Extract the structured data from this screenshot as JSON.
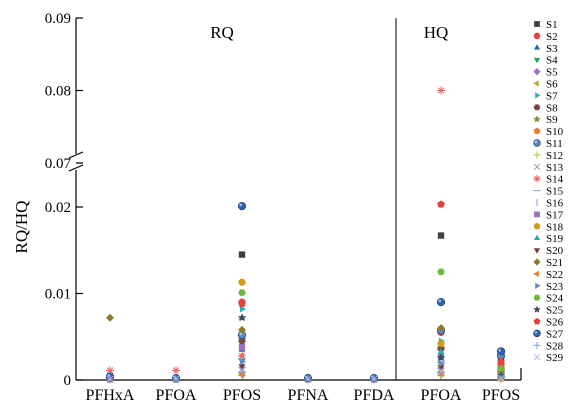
{
  "chart_data": {
    "type": "scatter",
    "ylabel": "RQ/HQ",
    "yaxis_break": [
      0.023,
      0.07
    ],
    "ylim": [
      0,
      0.09
    ],
    "yticks": [
      "0",
      "0.01",
      "0.02",
      "0.07",
      "0.08",
      "0.09"
    ],
    "legend_position": "right",
    "panels": [
      {
        "label": "RQ",
        "categories": [
          "PFHxA",
          "PFOA",
          "PFOS",
          "PFNA",
          "PFDA"
        ]
      },
      {
        "label": "HQ",
        "categories": [
          "PFOA",
          "PFOS"
        ]
      }
    ],
    "series": [
      {
        "name": "S1",
        "marker": "square",
        "color": "#404040",
        "rq": {
          "PFHxA": 0.0002,
          "PFOA": 0.0001,
          "PFOS": 0.0145,
          "PFNA": 0.0001,
          "PFDA": 0.0001
        },
        "hq": {
          "PFOA": 0.0167,
          "PFOS": 0.0022
        }
      },
      {
        "name": "S2",
        "marker": "circle",
        "color": "#e8403a",
        "rq": {
          "PFHxA": 0.0002,
          "PFOA": 0.0002,
          "PFOS": 0.009,
          "PFNA": 0.0001,
          "PFDA": 0.0001
        },
        "hq": {
          "PFOA": 0.0055,
          "PFOS": 0.0015
        }
      },
      {
        "name": "S3",
        "marker": "triangle-up",
        "color": "#2f62b4",
        "rq": {
          "PFHxA": 0.0001,
          "PFOA": 0.0001,
          "PFOS": 0.0035,
          "PFNA": 0.0001,
          "PFDA": 0.0001
        },
        "hq": {
          "PFOA": 0.0025,
          "PFOS": 0.0006
        }
      },
      {
        "name": "S4",
        "marker": "triangle-down",
        "color": "#27a35a",
        "rq": {
          "PFHxA": 0.0001,
          "PFOA": 0.0001,
          "PFOS": 0.0022,
          "PFNA": 0.0001,
          "PFDA": 0.0001
        },
        "hq": {
          "PFOA": 0.0018,
          "PFOS": 0.0004
        }
      },
      {
        "name": "S5",
        "marker": "diamond",
        "color": "#9e6fc1",
        "rq": {
          "PFHxA": 0.0001,
          "PFOA": 0.0001,
          "PFOS": 0.0048,
          "PFNA": 0.0001,
          "PFDA": 0.0001
        },
        "hq": {
          "PFOA": 0.0035,
          "PFOS": 0.0008
        }
      },
      {
        "name": "S6",
        "marker": "triangle-left",
        "color": "#b4a63a",
        "rq": {
          "PFHxA": 0.0001,
          "PFOA": 0.0001,
          "PFOS": 0.0028,
          "PFNA": 0.0001,
          "PFDA": 0.0001
        },
        "hq": {
          "PFOA": 0.006,
          "PFOS": 0.0005
        }
      },
      {
        "name": "S7",
        "marker": "triangle-right",
        "color": "#26b0c0",
        "rq": {
          "PFHxA": 0.0001,
          "PFOA": 0.0001,
          "PFOS": 0.0082,
          "PFNA": 0.0001,
          "PFDA": 0.0001
        },
        "hq": {
          "PFOA": 0.0045,
          "PFOS": 0.0009
        }
      },
      {
        "name": "S8",
        "marker": "hexagon",
        "color": "#7a4a3e",
        "rq": {
          "PFHxA": 0.0001,
          "PFOA": 0.0001,
          "PFOS": 0.0045,
          "PFNA": 0.0001,
          "PFDA": 0.0001
        },
        "hq": {
          "PFOA": 0.0037,
          "PFOS": 0.0012
        }
      },
      {
        "name": "S9",
        "marker": "star",
        "color": "#8a8a3a",
        "rq": {
          "PFHxA": 0.0001,
          "PFOA": 0.0001,
          "PFOS": 0.0013,
          "PFNA": 0.0001,
          "PFDA": 0.0001
        },
        "hq": {
          "PFOA": 0.0012,
          "PFOS": 0.0003
        }
      },
      {
        "name": "S10",
        "marker": "pentagon",
        "color": "#f07a2a",
        "rq": {
          "PFHxA": 0.0002,
          "PFOA": 0.0001,
          "PFOS": 0.0008,
          "PFNA": 0.0001,
          "PFDA": 0.0001
        },
        "hq": {
          "PFOA": 0.0008,
          "PFOS": 0.0002
        }
      },
      {
        "name": "S11",
        "marker": "sphere",
        "color": "#5a87c0",
        "rq": {
          "PFHxA": 0.0003,
          "PFOA": 0.0002,
          "PFOS": 0.0052,
          "PFNA": 0.0002,
          "PFDA": 0.0002
        },
        "hq": {
          "PFOA": 0.0057,
          "PFOS": 0.0028
        }
      },
      {
        "name": "S12",
        "marker": "plus",
        "color": "#b6c43a",
        "rq": {
          "PFHxA": 0.0001,
          "PFOA": 0.0001,
          "PFOS": 0.0005,
          "PFNA": 0.0001,
          "PFDA": 0.0001
        },
        "hq": {
          "PFOA": 0.0005,
          "PFOS": 0.0001
        }
      },
      {
        "name": "S13",
        "marker": "x",
        "color": "#9a9a9a",
        "rq": {
          "PFHxA": 0.0002,
          "PFOA": 0.0001,
          "PFOS": 0.0012,
          "PFNA": 0.0001,
          "PFDA": 0.0001
        },
        "hq": {
          "PFOA": 0.0011,
          "PFOS": 0.0003
        }
      },
      {
        "name": "S14",
        "marker": "asterisk",
        "color": "#f06060",
        "rq": {
          "PFHxA": 0.0011,
          "PFOA": 0.0011,
          "PFOS": 0.0028,
          "PFNA": 0.0001,
          "PFDA": 0.0001
        },
        "hq": {
          "PFOA": 0.08,
          "PFOS": 0.0018
        }
      },
      {
        "name": "S15",
        "marker": "hline",
        "color": "#7aa0d6",
        "rq": {
          "PFHxA": 0.0001,
          "PFOA": 0.0001,
          "PFOS": 0.0025,
          "PFNA": 0.0001,
          "PFDA": 0.0001
        },
        "hq": {
          "PFOA": 0.0021,
          "PFOS": 0.0004
        }
      },
      {
        "name": "S16",
        "marker": "vline",
        "color": "#7aa0d6",
        "rq": {
          "PFHxA": 0.0001,
          "PFOA": 0.0001,
          "PFOS": 0.0018,
          "PFNA": 0.0001,
          "PFDA": 0.0001
        },
        "hq": {
          "PFOA": 0.0016,
          "PFOS": 0.0003
        }
      },
      {
        "name": "S17",
        "marker": "square",
        "color": "#a070c0",
        "rq": {
          "PFHxA": 0.0002,
          "PFOA": 0.0001,
          "PFOS": 0.0038,
          "PFNA": 0.0001,
          "PFDA": 0.0001
        },
        "hq": {
          "PFOA": 0.0028,
          "PFOS": 0.0007
        }
      },
      {
        "name": "S18",
        "marker": "circle",
        "color": "#d39a1e",
        "rq": {
          "PFHxA": 0.0002,
          "PFOA": 0.0001,
          "PFOS": 0.0113,
          "PFNA": 0.0001,
          "PFDA": 0.0001
        },
        "hq": {
          "PFOA": 0.0042,
          "PFOS": 0.0011
        }
      },
      {
        "name": "S19",
        "marker": "triangle-up",
        "color": "#26b0a0",
        "rq": {
          "PFHxA": 0.0001,
          "PFOA": 0.0001,
          "PFOS": 0.0072,
          "PFNA": 0.0001,
          "PFDA": 0.0001
        },
        "hq": {
          "PFOA": 0.0032,
          "PFOS": 0.0006
        }
      },
      {
        "name": "S20",
        "marker": "triangle-down",
        "color": "#7a3a3a",
        "rq": {
          "PFHxA": 0.0001,
          "PFOA": 0.0001,
          "PFOS": 0.0016,
          "PFNA": 0.0001,
          "PFDA": 0.0001
        },
        "hq": {
          "PFOA": 0.0015,
          "PFOS": 0.0004
        }
      },
      {
        "name": "S21",
        "marker": "diamond",
        "color": "#8a7a2a",
        "rq": {
          "PFHxA": 0.0072,
          "PFOA": 0.0002,
          "PFOS": 0.0058,
          "PFNA": 0.0001,
          "PFDA": 0.0001
        },
        "hq": {
          "PFOA": 0.006,
          "PFOS": 0.001
        }
      },
      {
        "name": "S22",
        "marker": "triangle-left",
        "color": "#f07a2a",
        "rq": {
          "PFHxA": 0.0001,
          "PFOA": 0.0001,
          "PFOS": 0.0006,
          "PFNA": 0.0001,
          "PFDA": 0.0001
        },
        "hq": {
          "PFOA": 0.0007,
          "PFOS": 0.0002
        }
      },
      {
        "name": "S23",
        "marker": "triangle-right",
        "color": "#6a8ac0",
        "rq": {
          "PFHxA": 0.0001,
          "PFOA": 0.0001,
          "PFOS": 0.0021,
          "PFNA": 0.0001,
          "PFDA": 0.0001
        },
        "hq": {
          "PFOA": 0.0019,
          "PFOS": 0.0005
        }
      },
      {
        "name": "S24",
        "marker": "hexagon",
        "color": "#6cb83c",
        "rq": {
          "PFHxA": 0.0002,
          "PFOA": 0.0001,
          "PFOS": 0.0101,
          "PFNA": 0.0001,
          "PFDA": 0.0001
        },
        "hq": {
          "PFOA": 0.0125,
          "PFOS": 0.0013
        }
      },
      {
        "name": "S25",
        "marker": "star",
        "color": "#404a5a",
        "rq": {
          "PFHxA": 0.0001,
          "PFOA": 0.0001,
          "PFOS": 0.0072,
          "PFNA": 0.0001,
          "PFDA": 0.0001
        },
        "hq": {
          "PFOA": 0.0026,
          "PFOS": 0.0005
        }
      },
      {
        "name": "S26",
        "marker": "pentagon",
        "color": "#e8403a",
        "rq": {
          "PFHxA": 0.0002,
          "PFOA": 0.0001,
          "PFOS": 0.0088,
          "PFNA": 0.0001,
          "PFDA": 0.0001
        },
        "hq": {
          "PFOA": 0.0203,
          "PFOS": 0.0021
        }
      },
      {
        "name": "S27",
        "marker": "sphere",
        "color": "#2f62b4",
        "rq": {
          "PFHxA": 0.0004,
          "PFOA": 0.0002,
          "PFOS": 0.0201,
          "PFNA": 0.0002,
          "PFDA": 0.0002
        },
        "hq": {
          "PFOA": 0.009,
          "PFOS": 0.0033
        }
      },
      {
        "name": "S28",
        "marker": "plus",
        "color": "#7aa0d6",
        "rq": {
          "PFHxA": 0.0001,
          "PFOA": 0.0001,
          "PFOS": 0.0009,
          "PFNA": 0.0001,
          "PFDA": 0.0001
        },
        "hq": {
          "PFOA": 0.0009,
          "PFOS": 0.0002
        }
      },
      {
        "name": "S29",
        "marker": "x",
        "color": "#b0b8e0",
        "rq": {
          "PFHxA": 0.0001,
          "PFOA": 0.0001,
          "PFOS": 0.0011,
          "PFNA": 0.0001,
          "PFDA": 0.0001
        },
        "hq": {
          "PFOA": 0.001,
          "PFOS": 0.0002
        }
      }
    ]
  }
}
